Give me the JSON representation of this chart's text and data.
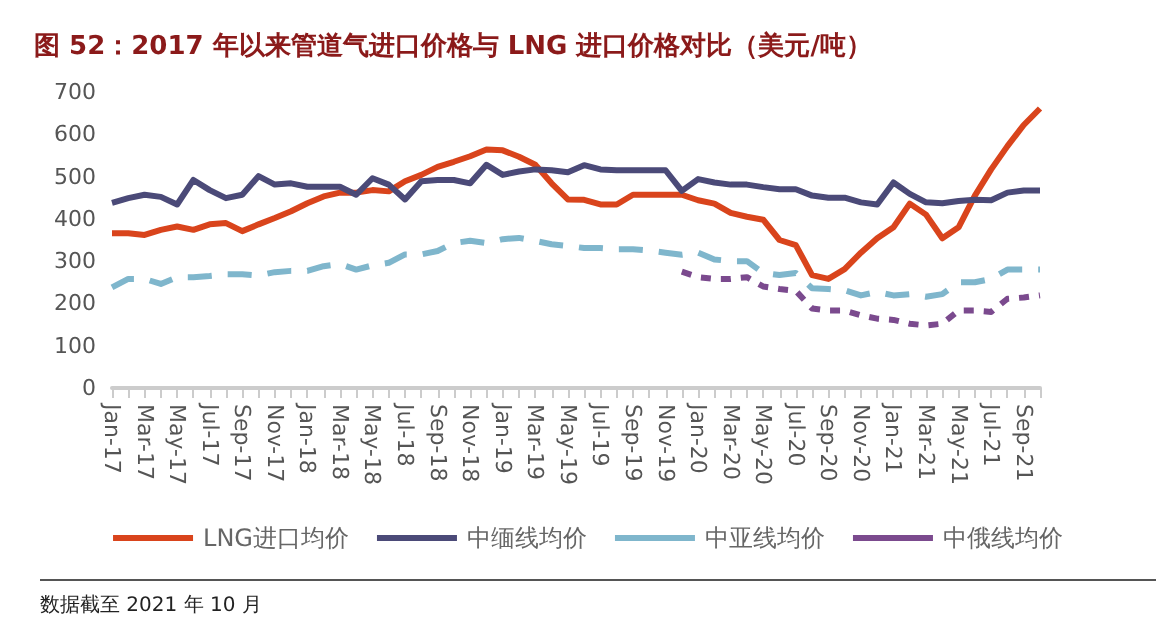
{
  "chart_data": {
    "type": "line",
    "title": "图 52：2017 年以来管道气进口价格与 LNG 进口价格对比（美元/吨）",
    "categories": [
      "Jan-17",
      null,
      "Mar-17",
      null,
      "May-17",
      null,
      "Jul-17",
      null,
      "Sep-17",
      null,
      "Nov-17",
      null,
      "Jan-18",
      null,
      "Mar-18",
      null,
      "May-18",
      null,
      "Jul-18",
      null,
      "Sep-18",
      null,
      "Nov-18",
      null,
      "Jan-19",
      null,
      "Mar-19",
      null,
      "May-19",
      null,
      "Jul-19",
      null,
      "Sep-19",
      null,
      "Nov-19",
      null,
      "Jan-20",
      null,
      "Mar-20",
      null,
      "May-20",
      null,
      "Jul-20",
      null,
      "Sep-20",
      null,
      "Nov-20",
      null,
      "Jan-21",
      null,
      "Mar-21",
      null,
      "May-21",
      null,
      "Jul-21",
      null,
      "Sep-21",
      null
    ],
    "series": [
      {
        "name": "LNG进口均价",
        "color": "#d9441c",
        "line_style": "solid",
        "values": [
          366,
          366,
          362,
          374,
          382,
          374,
          387,
          390,
          371,
          387,
          402,
          418,
          437,
          453,
          462,
          462,
          468,
          465,
          489,
          504,
          523,
          535,
          548,
          564,
          562,
          547,
          528,
          484,
          446,
          445,
          434,
          434,
          457,
          457,
          457,
          457,
          444,
          436,
          414,
          405,
          398,
          350,
          338,
          267,
          258,
          281,
          320,
          354,
          380,
          436,
          410,
          354,
          380,
          455,
          517,
          572,
          622,
          661
        ]
      },
      {
        "name": "中缅线均价",
        "color": "#4b4a78",
        "line_style": "solid",
        "values": [
          438,
          449,
          457,
          452,
          434,
          492,
          468,
          449,
          457,
          501,
          481,
          484,
          476,
          476,
          476,
          457,
          496,
          481,
          446,
          489,
          492,
          492,
          484,
          528,
          504,
          512,
          517,
          515,
          510,
          527,
          517,
          515,
          515,
          515,
          515,
          466,
          494,
          486,
          481,
          481,
          475,
          470,
          470,
          455,
          450,
          450,
          439,
          434,
          486,
          459,
          439,
          437,
          442,
          445,
          444,
          462,
          467,
          467
        ]
      },
      {
        "name": "中亚线均价",
        "color": "#7fb6cc",
        "line_style": "dashed",
        "values": [
          238,
          258,
          258,
          246,
          262,
          262,
          265,
          269,
          269,
          266,
          274,
          277,
          277,
          288,
          293,
          280,
          290,
          296,
          316,
          316,
          324,
          343,
          348,
          343,
          352,
          355,
          348,
          340,
          336,
          331,
          331,
          328,
          328,
          325,
          320,
          315,
          320,
          304,
          300,
          300,
          272,
          267,
          272,
          236,
          234,
          231,
          219,
          227,
          219,
          222,
          216,
          222,
          250,
          250,
          258,
          280,
          280,
          280
        ]
      },
      {
        "name": "中俄线均价",
        "color": "#7b4a8e",
        "line_style": "dotted",
        "values": [
          null,
          null,
          null,
          null,
          null,
          null,
          null,
          null,
          null,
          null,
          null,
          null,
          null,
          null,
          null,
          null,
          null,
          null,
          null,
          null,
          null,
          null,
          null,
          null,
          null,
          null,
          null,
          null,
          null,
          null,
          null,
          null,
          null,
          null,
          null,
          275,
          262,
          258,
          258,
          262,
          240,
          234,
          230,
          188,
          183,
          183,
          172,
          164,
          161,
          152,
          148,
          152,
          183,
          183,
          180,
          211,
          214,
          219
        ]
      }
    ],
    "ylim": [
      0,
      700
    ],
    "yticks": [
      0,
      100,
      200,
      300,
      400,
      500,
      600,
      700
    ],
    "grid": false,
    "legend": "bottom",
    "marker": "none",
    "annotations": [
      "数据截至 2021 年 10 月"
    ]
  }
}
